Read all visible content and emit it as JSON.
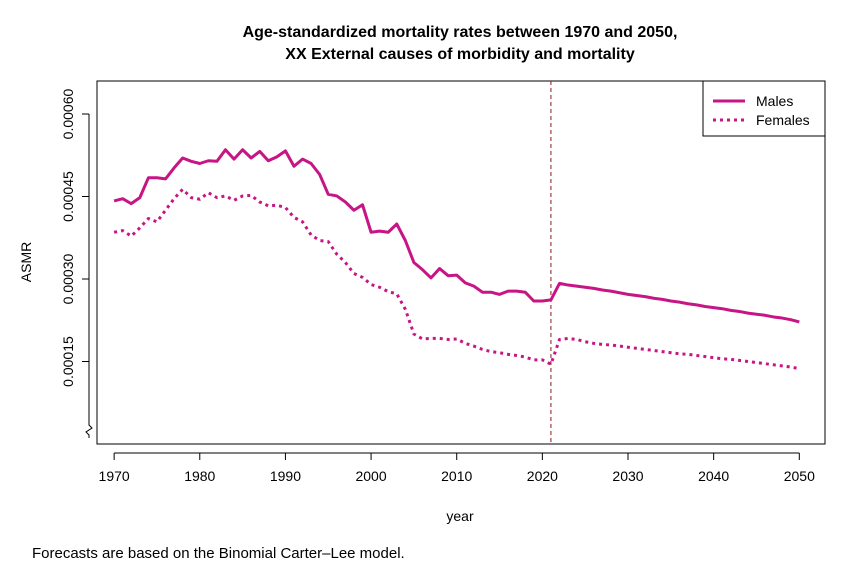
{
  "chart_data": {
    "type": "line",
    "title_lines": [
      "Age-standardized mortality rates between 1970 and 2050,",
      "XX External causes of morbidity and mortality"
    ],
    "xlabel": "year",
    "ylabel": "ASMR",
    "xlim": [
      1968,
      2053
    ],
    "ylim": [
      0.0,
      0.00066
    ],
    "x_ticks": [
      1970,
      1980,
      1990,
      2000,
      2010,
      2020,
      2030,
      2040,
      2050
    ],
    "y_ticks": [
      0.00015,
      0.0003,
      0.00045,
      0.0006
    ],
    "y_tick_labels": [
      "0.00015",
      "0.00030",
      "0.00045",
      "0.00060"
    ],
    "vline_x": 2021,
    "vline_color": "#8B1A1A",
    "legend_position": "top-right",
    "series": [
      {
        "name": "Males",
        "color": "#C71585",
        "style": "solid",
        "x": [
          1970,
          1971,
          1972,
          1973,
          1974,
          1975,
          1976,
          1977,
          1978,
          1979,
          1980,
          1981,
          1982,
          1983,
          1984,
          1985,
          1986,
          1987,
          1988,
          1989,
          1990,
          1991,
          1992,
          1993,
          1994,
          1995,
          1996,
          1997,
          1998,
          1999,
          2000,
          2001,
          2002,
          2003,
          2004,
          2005,
          2006,
          2007,
          2008,
          2009,
          2010,
          2011,
          2012,
          2013,
          2014,
          2015,
          2016,
          2017,
          2018,
          2019,
          2020,
          2021,
          2022,
          2023,
          2024,
          2025,
          2026,
          2027,
          2028,
          2029,
          2030,
          2031,
          2032,
          2033,
          2034,
          2035,
          2036,
          2037,
          2038,
          2039,
          2040,
          2041,
          2042,
          2043,
          2044,
          2045,
          2046,
          2047,
          2048,
          2049,
          2050
        ],
        "values": [
          0.000442,
          0.000446,
          0.000437,
          0.000448,
          0.000484,
          0.000484,
          0.000482,
          0.000502,
          0.00052,
          0.000514,
          0.00051,
          0.000515,
          0.000514,
          0.000535,
          0.000518,
          0.000535,
          0.00052,
          0.000532,
          0.000515,
          0.000522,
          0.000533,
          0.000505,
          0.000518,
          0.00051,
          0.00049,
          0.000454,
          0.000451,
          0.00044,
          0.000425,
          0.000435,
          0.000385,
          0.000387,
          0.000385,
          0.0004,
          0.00037,
          0.00033,
          0.000317,
          0.000302,
          0.000319,
          0.000306,
          0.000307,
          0.000293,
          0.000287,
          0.000276,
          0.000276,
          0.000272,
          0.000278,
          0.000278,
          0.000276,
          0.00026,
          0.00026,
          0.000262,
          0.000292,
          0.000289,
          0.000287,
          0.000285,
          0.000283,
          0.00028,
          0.000278,
          0.000275,
          0.000272,
          0.00027,
          0.000268,
          0.000265,
          0.000263,
          0.00026,
          0.000258,
          0.000255,
          0.000253,
          0.00025,
          0.000248,
          0.000246,
          0.000243,
          0.000241,
          0.000238,
          0.000236,
          0.000234,
          0.000231,
          0.000229,
          0.000226,
          0.000222
        ]
      },
      {
        "name": "Females",
        "color": "#C71585",
        "style": "dotted",
        "x": [
          1970,
          1971,
          1972,
          1973,
          1974,
          1975,
          1976,
          1977,
          1978,
          1979,
          1980,
          1981,
          1982,
          1983,
          1984,
          1985,
          1986,
          1987,
          1988,
          1989,
          1990,
          1991,
          1992,
          1993,
          1994,
          1995,
          1996,
          1997,
          1998,
          1999,
          2000,
          2001,
          2002,
          2003,
          2004,
          2005,
          2006,
          2007,
          2008,
          2009,
          2010,
          2011,
          2012,
          2013,
          2014,
          2015,
          2016,
          2017,
          2018,
          2019,
          2020,
          2021,
          2022,
          2023,
          2024,
          2025,
          2026,
          2027,
          2028,
          2029,
          2030,
          2031,
          2032,
          2033,
          2034,
          2035,
          2036,
          2037,
          2038,
          2039,
          2040,
          2041,
          2042,
          2043,
          2044,
          2045,
          2046,
          2047,
          2048,
          2049,
          2050
        ],
        "values": [
          0.000385,
          0.000388,
          0.000378,
          0.000393,
          0.00041,
          0.000404,
          0.000425,
          0.000446,
          0.000463,
          0.000448,
          0.000445,
          0.000457,
          0.000448,
          0.000451,
          0.000443,
          0.000451,
          0.000452,
          0.00044,
          0.000433,
          0.000434,
          0.00043,
          0.000412,
          0.000404,
          0.00038,
          0.00037,
          0.000368,
          0.000345,
          0.00033,
          0.00031,
          0.000303,
          0.00029,
          0.000285,
          0.000277,
          0.000273,
          0.000245,
          0.0002,
          0.000191,
          0.000192,
          0.000192,
          0.00019,
          0.000191,
          0.000183,
          0.000178,
          0.000172,
          0.000168,
          0.000166,
          0.000163,
          0.000161,
          0.000158,
          0.000153,
          0.000153,
          0.000145,
          0.00019,
          0.000192,
          0.00019,
          0.000186,
          0.000183,
          0.000181,
          0.00018,
          0.000178,
          0.000176,
          0.000174,
          0.000172,
          0.00017,
          0.000168,
          0.000166,
          0.000164,
          0.000163,
          0.000161,
          0.000159,
          0.000157,
          0.000155,
          0.000154,
          0.000152,
          0.00015,
          0.000148,
          0.000146,
          0.000144,
          0.000142,
          0.00014,
          0.000137
        ]
      }
    ]
  },
  "footnote": "Forecasts are based on the Binomial Carter–Lee model."
}
